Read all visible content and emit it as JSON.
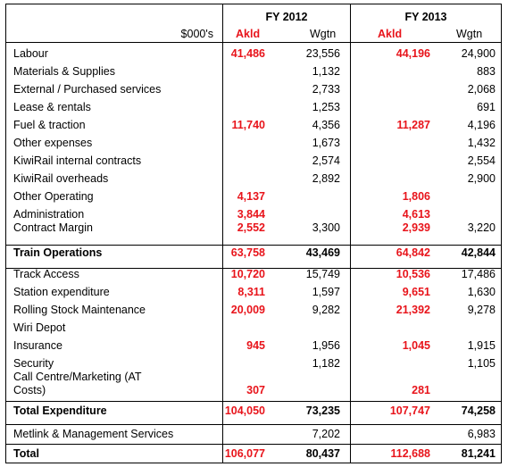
{
  "header": {
    "fy2012": "FY 2012",
    "fy2013": "FY 2013",
    "units": "$000's",
    "akld": "Akld",
    "wgtn": "Wgtn"
  },
  "rows": [
    {
      "label": "Labour",
      "a12": "41,486",
      "w12": "23,556",
      "a13": "44,196",
      "w13": "24,900"
    },
    {
      "label": "Materials & Supplies",
      "a12": "",
      "w12": "1,132",
      "a13": "",
      "w13": "883"
    },
    {
      "label": "External / Purchased services",
      "a12": "",
      "w12": "2,733",
      "a13": "",
      "w13": "2,068"
    },
    {
      "label": "Lease & rentals",
      "a12": "",
      "w12": "1,253",
      "a13": "",
      "w13": "691"
    },
    {
      "label": "Fuel & traction",
      "a12": "11,740",
      "w12": "4,356",
      "a13": "11,287",
      "w13": "4,196"
    },
    {
      "label": "Other expenses",
      "a12": "",
      "w12": "1,673",
      "a13": "",
      "w13": "1,432"
    },
    {
      "label": "KiwiRail internal contracts",
      "a12": "",
      "w12": "2,574",
      "a13": "",
      "w13": "2,554"
    },
    {
      "label": "KiwiRail overheads",
      "a12": "",
      "w12": "2,892",
      "a13": "",
      "w13": "2,900"
    },
    {
      "label": "Other Operating",
      "a12": "4,137",
      "w12": "",
      "a13": "1,806",
      "w13": ""
    },
    {
      "label": "Administration",
      "a12": "3,844",
      "w12": "",
      "a13": "4,613",
      "w13": ""
    },
    {
      "label": "Contract Margin",
      "a12": "2,552",
      "w12": "3,300",
      "a13": "2,939",
      "w13": "3,220"
    },
    {
      "label": "Train Operations",
      "a12": "63,758",
      "w12": "43,469",
      "a13": "64,842",
      "w13": "42,844"
    },
    {
      "label": "Track Access",
      "a12": "10,720",
      "w12": "15,749",
      "a13": "10,536",
      "w13": "17,486"
    },
    {
      "label": "Station expenditure",
      "a12": "8,311",
      "w12": "1,597",
      "a13": "9,651",
      "w13": "1,630"
    },
    {
      "label": "Rolling Stock Maintenance",
      "a12": "20,009",
      "w12": "9,282",
      "a13": "21,392",
      "w13": "9,278"
    },
    {
      "label": "Wiri Depot",
      "a12": "",
      "w12": "",
      "a13": "",
      "w13": ""
    },
    {
      "label": "Insurance",
      "a12": "945",
      "w12": "1,956",
      "a13": "1,045",
      "w13": "1,915"
    },
    {
      "label": "Security",
      "a12": "",
      "w12": "1,182",
      "a13": "",
      "w13": "1,105"
    },
    {
      "label": "Call Centre/Marketing (AT",
      "a12": "",
      "w12": "",
      "a13": "",
      "w13": ""
    },
    {
      "label": "Costs)",
      "a12": "307",
      "w12": "",
      "a13": "281",
      "w13": ""
    },
    {
      "label": "Total Expenditure",
      "a12": "104,050",
      "w12": "73,235",
      "a13": "107,747",
      "w13": "74,258"
    },
    {
      "label": "Metlink & Management Services",
      "a12": "",
      "w12": "7,202",
      "a13": "",
      "w13": "6,983"
    },
    {
      "label": "Total",
      "a12": "106,077",
      "w12": "80,437",
      "a13": "112,688",
      "w13": "81,241"
    }
  ]
}
